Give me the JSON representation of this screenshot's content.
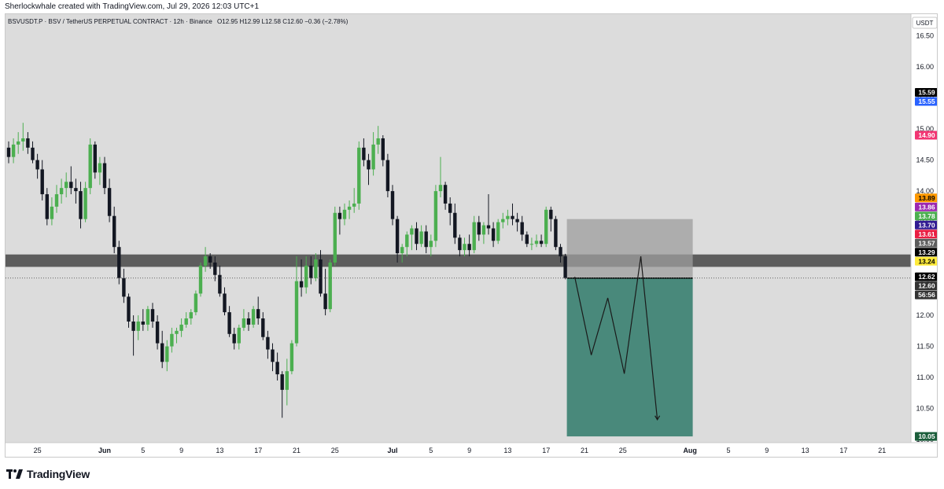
{
  "credit": "Sherlockwhale created with TradingView.com, Jul 29, 2026 12:03 UTC+1",
  "brand": "TradingView",
  "colors": {
    "background": "#dcdcdc",
    "up": "#4caf50",
    "down": "#131722",
    "support_zone": "#5d5d5d",
    "profit_zone": "#2f7a6a",
    "risk_zone": "#9e9e9e"
  },
  "chart_data": {
    "type": "candlestick",
    "title": "BSVUSDT.P · BSV / TetherUS PERPETUAL CONTRACT · 12h · Binance",
    "ohlc_text": "O12.95 H12.99 L12.58 C12.60 −0.36 (−2.78%)",
    "currency": "USDT",
    "interval": "12h",
    "ylim": [
      9.95,
      16.85
    ],
    "y_ticks": [
      "16.50",
      "16.00",
      "15.50",
      "15.00",
      "14.50",
      "14.00",
      "13.50",
      "13.00",
      "12.50",
      "12.00",
      "11.50",
      "11.00",
      "10.50",
      "10.00"
    ],
    "x_ticks": [
      {
        "label": "25",
        "date": "2026-05-25"
      },
      {
        "label": "Jun",
        "date": "2026-06-01",
        "major": true
      },
      {
        "label": "5",
        "date": "2026-06-05"
      },
      {
        "label": "9",
        "date": "2026-06-09"
      },
      {
        "label": "13",
        "date": "2026-06-13"
      },
      {
        "label": "17",
        "date": "2026-06-17"
      },
      {
        "label": "21",
        "date": "2026-06-21"
      },
      {
        "label": "25",
        "date": "2026-06-25"
      },
      {
        "label": "Jul",
        "date": "2026-07-01",
        "major": true
      },
      {
        "label": "5",
        "date": "2026-07-05"
      },
      {
        "label": "9",
        "date": "2026-07-09"
      },
      {
        "label": "13",
        "date": "2026-07-13"
      },
      {
        "label": "17",
        "date": "2026-07-17"
      },
      {
        "label": "21",
        "date": "2026-07-21"
      },
      {
        "label": "25",
        "date": "2026-07-25"
      },
      {
        "label": "Aug",
        "date": "2026-08-01",
        "major": true
      },
      {
        "label": "5",
        "date": "2026-08-05"
      },
      {
        "label": "9",
        "date": "2026-08-09"
      },
      {
        "label": "13",
        "date": "2026-08-13"
      },
      {
        "label": "17",
        "date": "2026-08-17"
      },
      {
        "label": "21",
        "date": "2026-08-21"
      }
    ],
    "candles": [
      [
        14.7,
        14.8,
        14.45,
        14.55
      ],
      [
        14.55,
        14.85,
        14.45,
        14.75
      ],
      [
        14.75,
        14.95,
        14.6,
        14.8
      ],
      [
        14.8,
        15.1,
        14.65,
        14.85
      ],
      [
        14.85,
        14.95,
        14.6,
        14.7
      ],
      [
        14.7,
        14.8,
        14.45,
        14.5
      ],
      [
        14.5,
        14.6,
        14.2,
        14.35
      ],
      [
        14.35,
        14.5,
        13.85,
        13.95
      ],
      [
        13.95,
        14.05,
        13.45,
        13.55
      ],
      [
        13.55,
        13.9,
        13.45,
        13.75
      ],
      [
        13.75,
        14.1,
        13.65,
        13.95
      ],
      [
        13.95,
        14.2,
        13.8,
        14.05
      ],
      [
        14.05,
        14.3,
        13.9,
        14.15
      ],
      [
        14.15,
        14.4,
        13.95,
        14.05
      ],
      [
        14.05,
        14.2,
        13.8,
        14.0
      ],
      [
        14.0,
        14.15,
        13.4,
        13.55
      ],
      [
        13.55,
        14.15,
        13.5,
        14.05
      ],
      [
        14.05,
        14.85,
        13.95,
        14.75
      ],
      [
        14.75,
        14.8,
        14.2,
        14.3
      ],
      [
        14.3,
        14.55,
        14.1,
        14.45
      ],
      [
        14.45,
        14.55,
        13.95,
        14.05
      ],
      [
        14.05,
        14.2,
        13.5,
        13.6
      ],
      [
        13.6,
        13.75,
        13.0,
        13.1
      ],
      [
        13.1,
        13.2,
        12.5,
        12.6
      ],
      [
        12.6,
        12.75,
        12.2,
        12.3
      ],
      [
        12.3,
        12.35,
        11.8,
        11.9
      ],
      [
        11.9,
        12.0,
        11.35,
        11.75
      ],
      [
        11.75,
        12.0,
        11.6,
        11.9
      ],
      [
        11.9,
        12.1,
        11.75,
        11.85
      ],
      [
        11.85,
        12.15,
        11.75,
        12.1
      ],
      [
        12.1,
        12.2,
        11.8,
        11.9
      ],
      [
        11.9,
        12.0,
        11.45,
        11.55
      ],
      [
        11.55,
        11.75,
        11.15,
        11.25
      ],
      [
        11.25,
        11.6,
        11.1,
        11.5
      ],
      [
        11.5,
        11.8,
        11.4,
        11.7
      ],
      [
        11.7,
        11.8,
        11.55,
        11.75
      ],
      [
        11.75,
        11.95,
        11.65,
        11.85
      ],
      [
        11.85,
        12.05,
        11.8,
        11.95
      ],
      [
        11.95,
        12.1,
        11.85,
        12.05
      ],
      [
        12.05,
        12.4,
        12.0,
        12.35
      ],
      [
        12.35,
        12.85,
        12.3,
        12.8
      ],
      [
        12.8,
        13.1,
        12.7,
        12.95
      ],
      [
        12.95,
        13.0,
        12.75,
        12.85
      ],
      [
        12.85,
        12.95,
        12.55,
        12.65
      ],
      [
        12.65,
        12.8,
        12.3,
        12.35
      ],
      [
        12.35,
        12.45,
        12.0,
        12.05
      ],
      [
        12.05,
        12.15,
        11.65,
        11.7
      ],
      [
        11.7,
        11.8,
        11.45,
        11.55
      ],
      [
        11.55,
        11.85,
        11.45,
        11.8
      ],
      [
        11.8,
        12.1,
        11.75,
        11.95
      ],
      [
        11.95,
        12.05,
        11.75,
        11.85
      ],
      [
        11.85,
        12.15,
        11.8,
        12.1
      ],
      [
        12.1,
        12.3,
        11.85,
        11.95
      ],
      [
        11.95,
        12.05,
        11.6,
        11.65
      ],
      [
        11.65,
        11.75,
        11.3,
        11.45
      ],
      [
        11.45,
        11.55,
        11.1,
        11.25
      ],
      [
        11.25,
        11.4,
        10.95,
        11.05
      ],
      [
        11.05,
        11.1,
        10.35,
        10.8
      ],
      [
        10.8,
        11.3,
        10.55,
        11.1
      ],
      [
        11.1,
        11.6,
        11.05,
        11.55
      ],
      [
        11.55,
        12.95,
        11.5,
        12.55
      ],
      [
        12.55,
        12.9,
        12.3,
        12.45
      ],
      [
        12.45,
        12.95,
        12.35,
        12.8
      ],
      [
        12.8,
        12.95,
        12.5,
        12.6
      ],
      [
        12.6,
        13.0,
        12.55,
        12.9
      ],
      [
        12.9,
        13.05,
        12.3,
        12.35
      ],
      [
        12.35,
        12.75,
        12.0,
        12.1
      ],
      [
        12.1,
        12.9,
        12.05,
        12.85
      ],
      [
        12.85,
        13.75,
        12.8,
        13.65
      ],
      [
        13.65,
        13.75,
        13.3,
        13.55
      ],
      [
        13.55,
        13.8,
        13.45,
        13.7
      ],
      [
        13.7,
        13.85,
        13.55,
        13.75
      ],
      [
        13.75,
        14.05,
        13.65,
        13.8
      ],
      [
        13.8,
        14.8,
        13.7,
        14.7
      ],
      [
        14.7,
        14.85,
        14.4,
        14.5
      ],
      [
        14.5,
        14.6,
        14.1,
        14.35
      ],
      [
        14.35,
        14.95,
        14.25,
        14.75
      ],
      [
        14.75,
        15.05,
        14.6,
        14.85
      ],
      [
        14.85,
        14.9,
        14.4,
        14.5
      ],
      [
        14.5,
        14.6,
        13.9,
        14.0
      ],
      [
        14.0,
        14.1,
        13.45,
        13.55
      ],
      [
        13.55,
        13.6,
        12.85,
        13.0
      ],
      [
        13.0,
        13.15,
        12.85,
        13.1
      ],
      [
        13.1,
        13.35,
        12.95,
        13.3
      ],
      [
        13.3,
        13.45,
        13.05,
        13.4
      ],
      [
        13.4,
        13.5,
        13.05,
        13.15
      ],
      [
        13.15,
        13.45,
        13.1,
        13.35
      ],
      [
        13.35,
        13.45,
        13.0,
        13.1
      ],
      [
        13.1,
        13.3,
        12.95,
        13.2
      ],
      [
        13.2,
        14.1,
        13.1,
        14.0
      ],
      [
        14.0,
        14.55,
        13.9,
        14.1
      ],
      [
        14.1,
        14.15,
        13.7,
        13.8
      ],
      [
        13.8,
        13.9,
        13.45,
        13.65
      ],
      [
        13.65,
        13.8,
        13.15,
        13.25
      ],
      [
        13.25,
        13.3,
        12.95,
        13.05
      ],
      [
        13.05,
        13.25,
        12.95,
        13.15
      ],
      [
        13.15,
        13.3,
        12.95,
        13.05
      ],
      [
        13.05,
        13.6,
        13.0,
        13.5
      ],
      [
        13.5,
        13.6,
        13.2,
        13.3
      ],
      [
        13.3,
        13.5,
        13.15,
        13.45
      ],
      [
        13.45,
        13.95,
        13.3,
        13.4
      ],
      [
        13.4,
        13.5,
        13.1,
        13.2
      ],
      [
        13.2,
        13.55,
        13.15,
        13.5
      ],
      [
        13.5,
        13.65,
        13.4,
        13.55
      ],
      [
        13.55,
        13.7,
        13.45,
        13.6
      ],
      [
        13.6,
        13.8,
        13.45,
        13.55
      ],
      [
        13.55,
        13.65,
        13.35,
        13.5
      ],
      [
        13.5,
        13.6,
        13.2,
        13.3
      ],
      [
        13.3,
        13.35,
        13.1,
        13.15
      ],
      [
        13.15,
        13.25,
        13.05,
        13.15
      ],
      [
        13.15,
        13.3,
        13.1,
        13.2
      ],
      [
        13.2,
        13.3,
        13.1,
        13.15
      ],
      [
        13.15,
        13.75,
        13.1,
        13.7
      ],
      [
        13.7,
        13.75,
        13.35,
        13.55
      ],
      [
        13.55,
        13.6,
        13.05,
        13.1
      ],
      [
        13.1,
        13.15,
        12.85,
        12.95
      ],
      [
        12.95,
        12.99,
        12.58,
        12.6
      ]
    ],
    "levels": {
      "support_zone": [
        12.78,
        12.98
      ],
      "current_price": 12.6,
      "entry": 12.6,
      "stop_loss": 13.55,
      "take_profit": 10.05
    },
    "projection_path": [
      [
        12.62,
        0
      ],
      [
        11.36,
        1
      ],
      [
        12.28,
        2
      ],
      [
        11.06,
        3
      ],
      [
        12.95,
        4
      ],
      [
        10.32,
        5
      ]
    ],
    "price_labels": [
      {
        "text": "USDT",
        "kind": "currency"
      },
      {
        "text": "15.59",
        "value": 15.59,
        "bg": "#000000",
        "fg": "#ffffff"
      },
      {
        "text": "15.55",
        "value": 15.55,
        "bg": "#2962ff",
        "fg": "#ffffff"
      },
      {
        "text": "14.90",
        "value": 14.9,
        "bg": "#f23673",
        "fg": "#ffffff"
      },
      {
        "text": "13.89",
        "value": 13.89,
        "bg": "#ff9800",
        "fg": "#000000"
      },
      {
        "text": "13.86",
        "value": 13.86,
        "bg": "#9c27b0",
        "fg": "#ffffff"
      },
      {
        "text": "13.78",
        "value": 13.78,
        "bg": "#4caf50",
        "fg": "#ffffff"
      },
      {
        "text": "13.70",
        "value": 13.7,
        "bg": "#311b92",
        "fg": "#ffffff"
      },
      {
        "text": "13.61",
        "value": 13.61,
        "bg": "#e91e43",
        "fg": "#ffffff"
      },
      {
        "text": "13.57",
        "value": 13.57,
        "bg": "#5d5d5d",
        "fg": "#ffffff"
      },
      {
        "text": "13.29",
        "value": 13.29,
        "bg": "#000000",
        "fg": "#ffffff"
      },
      {
        "text": "13.24",
        "value": 13.24,
        "bg": "#ffeb3b",
        "fg": "#000000"
      },
      {
        "text": "12.62",
        "value": 12.62,
        "bg": "#000000",
        "fg": "#ffffff"
      },
      {
        "text": "12.60",
        "value": 12.6,
        "bg": "#333333",
        "fg": "#ffffff"
      },
      {
        "text": "56:56",
        "value": 12.6,
        "bg": "#333333",
        "fg": "#ffffff",
        "kind": "countdown"
      },
      {
        "text": "10.05",
        "value": 10.05,
        "bg": "#1b5e3b",
        "fg": "#ffffff"
      }
    ]
  }
}
